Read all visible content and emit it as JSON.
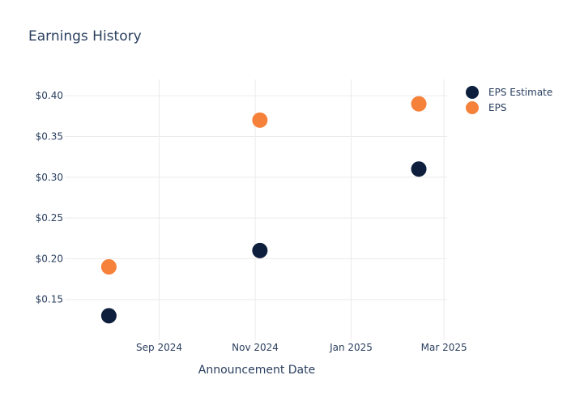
{
  "chart_data": {
    "type": "scatter",
    "title": "Earnings History",
    "xlabel": "Announcement Date",
    "ylabel": "",
    "x_ticks": [
      {
        "date": "2024-09-01",
        "label": "Sep 2024"
      },
      {
        "date": "2024-11-01",
        "label": "Nov 2024"
      },
      {
        "date": "2025-01-01",
        "label": "Jan 2025"
      },
      {
        "date": "2025-03-01",
        "label": "Mar 2025"
      }
    ],
    "xlim": [
      "2024-07-03",
      "2025-03-03"
    ],
    "y_ticks": [
      {
        "value": 0.15,
        "label": "$0.15"
      },
      {
        "value": 0.2,
        "label": "$0.20"
      },
      {
        "value": 0.25,
        "label": "$0.25"
      },
      {
        "value": 0.3,
        "label": "$0.30"
      },
      {
        "value": 0.35,
        "label": "$0.35"
      },
      {
        "value": 0.4,
        "label": "$0.40"
      }
    ],
    "ylim": [
      0.1,
      0.42
    ],
    "grid": true,
    "legend_position": "top-right",
    "series": [
      {
        "name": "EPS Estimate",
        "color": "#0d1f3c",
        "points": [
          {
            "x": "2024-07-31",
            "y": 0.13
          },
          {
            "x": "2024-11-04",
            "y": 0.21
          },
          {
            "x": "2025-02-13",
            "y": 0.31
          }
        ]
      },
      {
        "name": "EPS",
        "color": "#f5813a",
        "points": [
          {
            "x": "2024-07-31",
            "y": 0.19
          },
          {
            "x": "2024-11-04",
            "y": 0.37
          },
          {
            "x": "2025-02-13",
            "y": 0.39
          }
        ]
      }
    ]
  }
}
